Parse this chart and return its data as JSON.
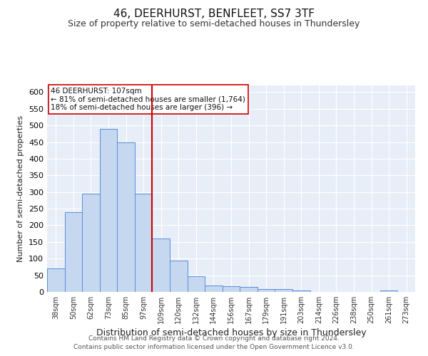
{
  "title": "46, DEERHURST, BENFLEET, SS7 3TF",
  "subtitle": "Size of property relative to semi-detached houses in Thundersley",
  "xlabel": "Distribution of semi-detached houses by size in Thundersley",
  "ylabel": "Number of semi-detached properties",
  "footnote1": "Contains HM Land Registry data © Crown copyright and database right 2024.",
  "footnote2": "Contains public sector information licensed under the Open Government Licence v3.0.",
  "categories": [
    "38sqm",
    "50sqm",
    "62sqm",
    "73sqm",
    "85sqm",
    "97sqm",
    "109sqm",
    "120sqm",
    "132sqm",
    "144sqm",
    "156sqm",
    "167sqm",
    "179sqm",
    "191sqm",
    "203sqm",
    "214sqm",
    "226sqm",
    "238sqm",
    "250sqm",
    "261sqm",
    "273sqm"
  ],
  "values": [
    70,
    240,
    295,
    490,
    450,
    295,
    160,
    95,
    48,
    20,
    18,
    14,
    9,
    9,
    5,
    0,
    0,
    0,
    0,
    5,
    0
  ],
  "bar_color": "#c5d8f0",
  "bar_edge_color": "#5b8dd9",
  "figure_bg": "#ffffff",
  "axes_bg": "#e8eef8",
  "grid_color": "#ffffff",
  "annotation_text": "46 DEERHURST: 107sqm\n← 81% of semi-detached houses are smaller (1,764)\n18% of semi-detached houses are larger (396) →",
  "annotation_box_facecolor": "#ffffff",
  "annotation_box_edgecolor": "#cc0000",
  "property_line_color": "#cc0000",
  "property_line_index": 6,
  "ylim": [
    0,
    620
  ],
  "yticks": [
    0,
    50,
    100,
    150,
    200,
    250,
    300,
    350,
    400,
    450,
    500,
    550,
    600
  ],
  "title_fontsize": 11,
  "subtitle_fontsize": 9,
  "xlabel_fontsize": 9,
  "ylabel_fontsize": 8,
  "xtick_fontsize": 7,
  "ytick_fontsize": 8,
  "footnote_fontsize": 6.5
}
